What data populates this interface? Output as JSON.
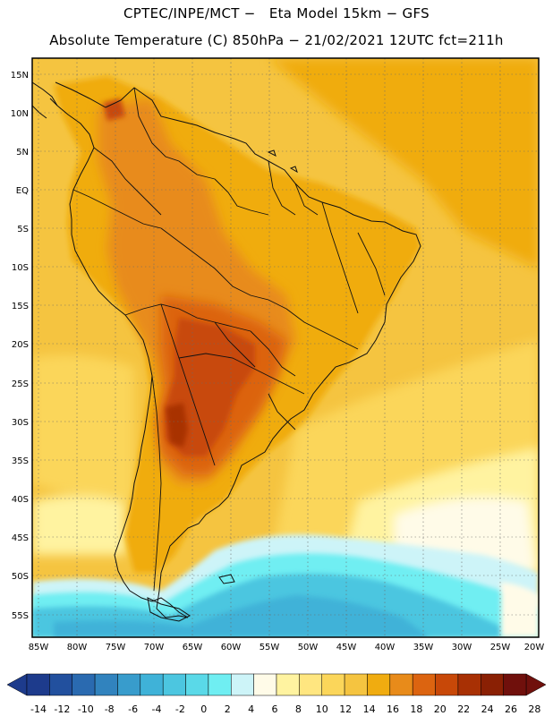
{
  "header": {
    "line1": "CPTEC/INPE/MCT −   Eta Model 15km − GFS",
    "line2": "Absolute Temperature (C) 850hPa − 21/02/2021 12UTC fct=211h"
  },
  "axes": {
    "lat_labels": [
      "15N",
      "10N",
      "5N",
      "EQ",
      "5S",
      "10S",
      "15S",
      "20S",
      "25S",
      "30S",
      "35S",
      "40S",
      "45S",
      "50S",
      "55S"
    ],
    "lon_labels": [
      "85W",
      "80W",
      "75W",
      "70W",
      "65W",
      "60W",
      "55W",
      "50W",
      "45W",
      "40W",
      "35W",
      "30W",
      "25W",
      "20W"
    ]
  },
  "colorbar": {
    "labels": [
      "-14",
      "-12",
      "-10",
      "-8",
      "-6",
      "-4",
      "-2",
      "0",
      "2",
      "4",
      "6",
      "8",
      "10",
      "12",
      "14",
      "16",
      "18",
      "20",
      "22",
      "24",
      "26",
      "28"
    ],
    "colors": [
      "#1d3b8c",
      "#22509e",
      "#2a6ab0",
      "#3183be",
      "#389ccc",
      "#3fb2d8",
      "#4cc6e0",
      "#5ad9e8",
      "#6feef2",
      "#cdf4f8",
      "#fffbe8",
      "#fff3a0",
      "#ffe680",
      "#fbd65a",
      "#f5c440",
      "#f0ac10",
      "#e88b1a",
      "#dc6410",
      "#c84808",
      "#a83004",
      "#8a2004",
      "#70100c"
    ]
  },
  "colors": {
    "ocean_warm": "#f5c440",
    "land_hot": "#dc6410",
    "land_base": "#f0ac10",
    "cold_tip": "#3fb2d8"
  }
}
